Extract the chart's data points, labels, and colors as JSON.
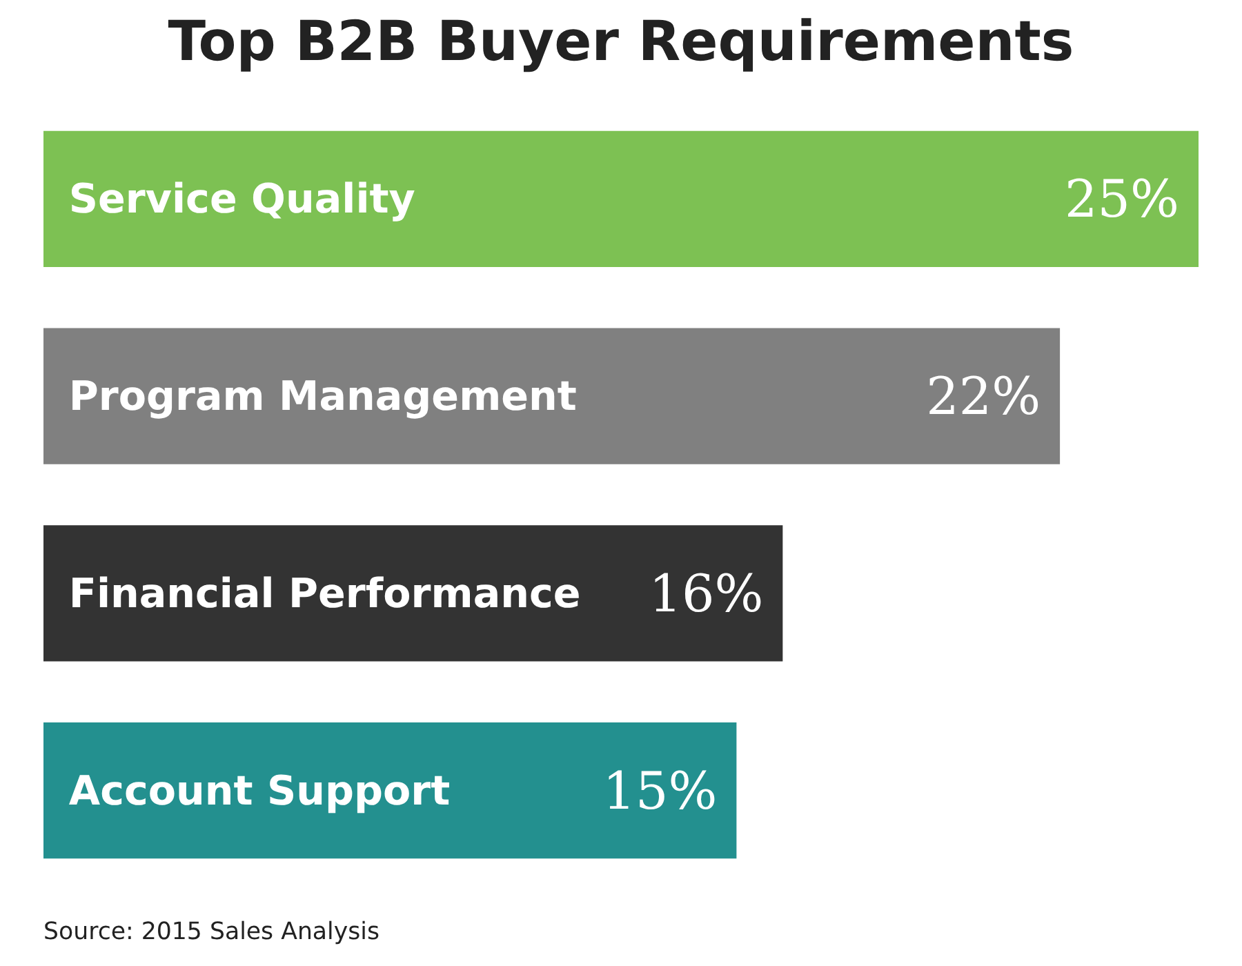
{
  "chart_data": {
    "type": "bar",
    "orientation": "horizontal",
    "title": "Top B2B Buyer Requirements",
    "categories": [
      "Service Quality",
      "Program Management",
      "Financial Performance",
      "Account Support"
    ],
    "values": [
      25,
      22,
      16,
      15
    ],
    "colors": [
      "#7dc153",
      "#808080",
      "#333333",
      "#23908f"
    ],
    "value_labels": [
      "25%",
      "22%",
      "16%",
      "15%"
    ],
    "xlim": [
      0,
      25
    ],
    "tick_labels": false,
    "annotations": [
      "Source: 2015 Sales Analysis"
    ]
  }
}
